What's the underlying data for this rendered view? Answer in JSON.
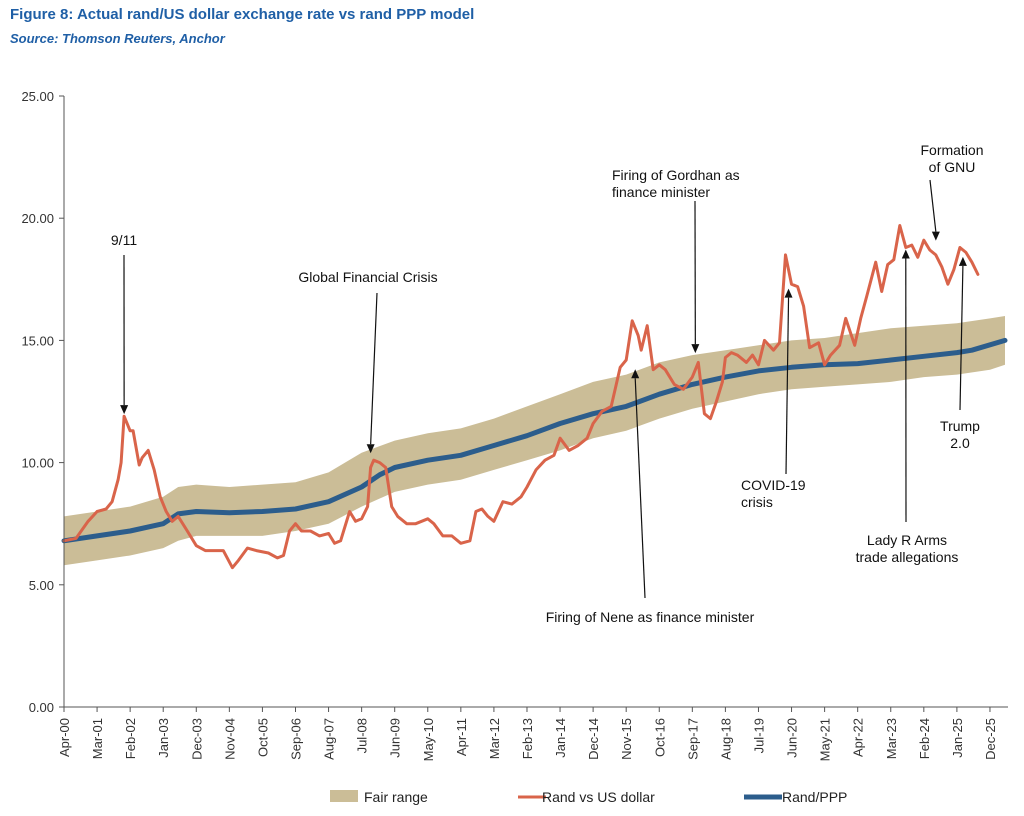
{
  "figure": {
    "title": "Figure 8: Actual rand/US dollar exchange rate vs rand PPP model",
    "source": "Source: Thomson Reuters, Anchor"
  },
  "chart_data": {
    "type": "line",
    "title": "Figure 8: Actual rand/US dollar exchange rate vs rand PPP model",
    "xlabel": "",
    "ylabel": "",
    "x_range": [
      "2000-04",
      "2026-06"
    ],
    "ylim": [
      0,
      25
    ],
    "yticks": [
      "0.00",
      "5.00",
      "10.00",
      "15.00",
      "20.00",
      "25.00"
    ],
    "xticks": [
      {
        "label": "Apr-00",
        "date": "2000-04"
      },
      {
        "label": "Mar-01",
        "date": "2001-03"
      },
      {
        "label": "Feb-02",
        "date": "2002-02"
      },
      {
        "label": "Jan-03",
        "date": "2003-01"
      },
      {
        "label": "Dec-03",
        "date": "2003-12"
      },
      {
        "label": "Nov-04",
        "date": "2004-11"
      },
      {
        "label": "Oct-05",
        "date": "2005-10"
      },
      {
        "label": "Sep-06",
        "date": "2006-09"
      },
      {
        "label": "Aug-07",
        "date": "2007-08"
      },
      {
        "label": "Jul-08",
        "date": "2008-07"
      },
      {
        "label": "Jun-09",
        "date": "2009-06"
      },
      {
        "label": "May-10",
        "date": "2010-05"
      },
      {
        "label": "Apr-11",
        "date": "2011-04"
      },
      {
        "label": "Mar-12",
        "date": "2012-03"
      },
      {
        "label": "Feb-13",
        "date": "2013-02"
      },
      {
        "label": "Jan-14",
        "date": "2014-01"
      },
      {
        "label": "Dec-14",
        "date": "2014-12"
      },
      {
        "label": "Nov-15",
        "date": "2015-11"
      },
      {
        "label": "Oct-16",
        "date": "2016-10"
      },
      {
        "label": "Sep-17",
        "date": "2017-09"
      },
      {
        "label": "Aug-18",
        "date": "2018-08"
      },
      {
        "label": "Jul-19",
        "date": "2019-07"
      },
      {
        "label": "Jun-20",
        "date": "2020-06"
      },
      {
        "label": "May-21",
        "date": "2021-05"
      },
      {
        "label": "Apr-22",
        "date": "2022-04"
      },
      {
        "label": "Mar-23",
        "date": "2023-03"
      },
      {
        "label": "Feb-24",
        "date": "2024-02"
      },
      {
        "label": "Jan-25",
        "date": "2025-01"
      },
      {
        "label": "Dec-25",
        "date": "2025-12"
      }
    ],
    "grid": false,
    "legend_position": "bottom",
    "series": [
      {
        "name": "Fair range",
        "kind": "band",
        "color": "#cbbd97",
        "points": [
          {
            "date": "2000-04",
            "low": 5.8,
            "high": 7.8
          },
          {
            "date": "2001-03",
            "low": 6.0,
            "high": 8.0
          },
          {
            "date": "2002-02",
            "low": 6.2,
            "high": 8.2
          },
          {
            "date": "2003-01",
            "low": 6.5,
            "high": 8.6
          },
          {
            "date": "2003-06",
            "low": 6.8,
            "high": 9.0
          },
          {
            "date": "2003-12",
            "low": 7.0,
            "high": 9.1
          },
          {
            "date": "2004-11",
            "low": 7.0,
            "high": 9.0
          },
          {
            "date": "2005-10",
            "low": 7.0,
            "high": 9.1
          },
          {
            "date": "2006-09",
            "low": 7.2,
            "high": 9.2
          },
          {
            "date": "2007-08",
            "low": 7.5,
            "high": 9.6
          },
          {
            "date": "2008-07",
            "low": 8.2,
            "high": 10.4
          },
          {
            "date": "2009-06",
            "low": 8.8,
            "high": 10.9
          },
          {
            "date": "2010-05",
            "low": 9.1,
            "high": 11.2
          },
          {
            "date": "2011-04",
            "low": 9.3,
            "high": 11.4
          },
          {
            "date": "2012-03",
            "low": 9.7,
            "high": 11.8
          },
          {
            "date": "2013-02",
            "low": 10.1,
            "high": 12.3
          },
          {
            "date": "2014-01",
            "low": 10.5,
            "high": 12.8
          },
          {
            "date": "2014-12",
            "low": 11.0,
            "high": 13.3
          },
          {
            "date": "2015-11",
            "low": 11.3,
            "high": 13.6
          },
          {
            "date": "2016-10",
            "low": 11.8,
            "high": 14.1
          },
          {
            "date": "2017-09",
            "low": 12.2,
            "high": 14.4
          },
          {
            "date": "2018-08",
            "low": 12.5,
            "high": 14.6
          },
          {
            "date": "2019-07",
            "low": 12.8,
            "high": 14.8
          },
          {
            "date": "2020-06",
            "low": 13.0,
            "high": 15.0
          },
          {
            "date": "2021-05",
            "low": 13.1,
            "high": 15.1
          },
          {
            "date": "2022-04",
            "low": 13.2,
            "high": 15.3
          },
          {
            "date": "2023-03",
            "low": 13.3,
            "high": 15.5
          },
          {
            "date": "2024-02",
            "low": 13.5,
            "high": 15.6
          },
          {
            "date": "2025-01",
            "low": 13.6,
            "high": 15.7
          },
          {
            "date": "2025-12",
            "low": 13.8,
            "high": 15.9
          },
          {
            "date": "2026-05",
            "low": 14.0,
            "high": 16.0
          }
        ]
      },
      {
        "name": "Rand vs US dollar",
        "kind": "line",
        "color": "#d9644a",
        "points": [
          [
            "2000-04",
            6.8
          ],
          [
            "2000-08",
            6.9
          ],
          [
            "2000-12",
            7.6
          ],
          [
            "2001-03",
            8.0
          ],
          [
            "2001-06",
            8.1
          ],
          [
            "2001-08",
            8.4
          ],
          [
            "2001-10",
            9.3
          ],
          [
            "2001-11",
            10.0
          ],
          [
            "2001-12",
            11.9
          ],
          [
            "2002-02",
            11.3
          ],
          [
            "2002-03",
            11.3
          ],
          [
            "2002-05",
            9.9
          ],
          [
            "2002-06",
            10.2
          ],
          [
            "2002-08",
            10.5
          ],
          [
            "2002-10",
            9.7
          ],
          [
            "2002-12",
            8.6
          ],
          [
            "2003-02",
            8.0
          ],
          [
            "2003-04",
            7.6
          ],
          [
            "2003-06",
            7.8
          ],
          [
            "2003-09",
            7.2
          ],
          [
            "2003-12",
            6.6
          ],
          [
            "2004-03",
            6.4
          ],
          [
            "2004-06",
            6.4
          ],
          [
            "2004-09",
            6.4
          ],
          [
            "2004-12",
            5.7
          ],
          [
            "2005-02",
            6.0
          ],
          [
            "2005-05",
            6.5
          ],
          [
            "2005-08",
            6.4
          ],
          [
            "2005-12",
            6.3
          ],
          [
            "2006-03",
            6.1
          ],
          [
            "2006-05",
            6.2
          ],
          [
            "2006-07",
            7.2
          ],
          [
            "2006-09",
            7.5
          ],
          [
            "2006-11",
            7.2
          ],
          [
            "2007-02",
            7.2
          ],
          [
            "2007-05",
            7.0
          ],
          [
            "2007-08",
            7.1
          ],
          [
            "2007-10",
            6.7
          ],
          [
            "2007-12",
            6.8
          ],
          [
            "2008-03",
            8.0
          ],
          [
            "2008-05",
            7.6
          ],
          [
            "2008-07",
            7.7
          ],
          [
            "2008-09",
            8.2
          ],
          [
            "2008-10",
            9.8
          ],
          [
            "2008-11",
            10.1
          ],
          [
            "2009-01",
            10.0
          ],
          [
            "2009-03",
            9.8
          ],
          [
            "2009-05",
            8.2
          ],
          [
            "2009-07",
            7.8
          ],
          [
            "2009-10",
            7.5
          ],
          [
            "2010-01",
            7.5
          ],
          [
            "2010-05",
            7.7
          ],
          [
            "2010-07",
            7.5
          ],
          [
            "2010-10",
            7.0
          ],
          [
            "2011-01",
            7.0
          ],
          [
            "2011-04",
            6.7
          ],
          [
            "2011-07",
            6.8
          ],
          [
            "2011-09",
            8.0
          ],
          [
            "2011-11",
            8.1
          ],
          [
            "2012-01",
            7.8
          ],
          [
            "2012-03",
            7.6
          ],
          [
            "2012-06",
            8.4
          ],
          [
            "2012-09",
            8.3
          ],
          [
            "2012-12",
            8.6
          ],
          [
            "2013-02",
            9.0
          ],
          [
            "2013-05",
            9.7
          ],
          [
            "2013-08",
            10.1
          ],
          [
            "2013-11",
            10.3
          ],
          [
            "2014-01",
            11.0
          ],
          [
            "2014-04",
            10.5
          ],
          [
            "2014-07",
            10.7
          ],
          [
            "2014-10",
            11.0
          ],
          [
            "2014-12",
            11.6
          ],
          [
            "2015-03",
            12.1
          ],
          [
            "2015-06",
            12.3
          ],
          [
            "2015-09",
            13.9
          ],
          [
            "2015-11",
            14.2
          ],
          [
            "2016-01",
            15.8
          ],
          [
            "2016-03",
            15.2
          ],
          [
            "2016-04",
            14.6
          ],
          [
            "2016-06",
            15.6
          ],
          [
            "2016-08",
            13.8
          ],
          [
            "2016-10",
            14.0
          ],
          [
            "2016-12",
            13.8
          ],
          [
            "2017-03",
            13.2
          ],
          [
            "2017-06",
            13.0
          ],
          [
            "2017-09",
            13.5
          ],
          [
            "2017-11",
            14.1
          ],
          [
            "2018-01",
            12.0
          ],
          [
            "2018-03",
            11.8
          ],
          [
            "2018-05",
            12.5
          ],
          [
            "2018-07",
            13.3
          ],
          [
            "2018-08",
            14.3
          ],
          [
            "2018-10",
            14.5
          ],
          [
            "2018-12",
            14.4
          ],
          [
            "2019-03",
            14.1
          ],
          [
            "2019-05",
            14.4
          ],
          [
            "2019-07",
            14.0
          ],
          [
            "2019-09",
            15.0
          ],
          [
            "2019-12",
            14.6
          ],
          [
            "2020-02",
            14.9
          ],
          [
            "2020-04",
            18.5
          ],
          [
            "2020-06",
            17.3
          ],
          [
            "2020-08",
            17.2
          ],
          [
            "2020-10",
            16.4
          ],
          [
            "2020-12",
            14.7
          ],
          [
            "2021-03",
            14.9
          ],
          [
            "2021-05",
            14.0
          ],
          [
            "2021-07",
            14.4
          ],
          [
            "2021-10",
            14.8
          ],
          [
            "2021-12",
            15.9
          ],
          [
            "2022-03",
            14.8
          ],
          [
            "2022-05",
            15.9
          ],
          [
            "2022-07",
            16.8
          ],
          [
            "2022-10",
            18.2
          ],
          [
            "2022-12",
            17.0
          ],
          [
            "2023-02",
            18.1
          ],
          [
            "2023-04",
            18.3
          ],
          [
            "2023-06",
            19.7
          ],
          [
            "2023-08",
            18.8
          ],
          [
            "2023-10",
            18.9
          ],
          [
            "2023-12",
            18.4
          ],
          [
            "2024-02",
            19.1
          ],
          [
            "2024-04",
            18.7
          ],
          [
            "2024-06",
            18.5
          ],
          [
            "2024-08",
            18.0
          ],
          [
            "2024-10",
            17.3
          ],
          [
            "2024-12",
            17.9
          ],
          [
            "2025-02",
            18.8
          ],
          [
            "2025-04",
            18.6
          ],
          [
            "2025-06",
            18.2
          ],
          [
            "2025-08",
            17.7
          ]
        ]
      },
      {
        "name": "Rand/PPP",
        "kind": "line",
        "color": "#2c5d8c",
        "points": [
          [
            "2000-04",
            6.8
          ],
          [
            "2001-03",
            7.0
          ],
          [
            "2002-02",
            7.2
          ],
          [
            "2003-01",
            7.5
          ],
          [
            "2003-06",
            7.9
          ],
          [
            "2003-12",
            8.0
          ],
          [
            "2004-11",
            7.95
          ],
          [
            "2005-10",
            8.0
          ],
          [
            "2006-09",
            8.1
          ],
          [
            "2007-08",
            8.4
          ],
          [
            "2008-07",
            9.0
          ],
          [
            "2009-01",
            9.5
          ],
          [
            "2009-06",
            9.8
          ],
          [
            "2010-05",
            10.1
          ],
          [
            "2011-04",
            10.3
          ],
          [
            "2012-03",
            10.7
          ],
          [
            "2013-02",
            11.1
          ],
          [
            "2014-01",
            11.6
          ],
          [
            "2014-12",
            12.0
          ],
          [
            "2015-11",
            12.3
          ],
          [
            "2016-10",
            12.8
          ],
          [
            "2017-09",
            13.2
          ],
          [
            "2018-08",
            13.5
          ],
          [
            "2019-07",
            13.75
          ],
          [
            "2020-06",
            13.9
          ],
          [
            "2021-05",
            14.0
          ],
          [
            "2022-04",
            14.05
          ],
          [
            "2023-03",
            14.2
          ],
          [
            "2024-02",
            14.35
          ],
          [
            "2025-01",
            14.5
          ],
          [
            "2025-06",
            14.6
          ],
          [
            "2026-05",
            15.0
          ]
        ]
      }
    ],
    "annotations": [
      {
        "lines": [
          "9/11"
        ],
        "date": "2001-12",
        "value": 11.9
      },
      {
        "lines": [
          "Global Financial Crisis"
        ],
        "date": "2008-10",
        "value": 10.3
      },
      {
        "lines": [
          "Firing of Nene as finance minister"
        ],
        "date": "2016-02",
        "value": 13.9
      },
      {
        "lines": [
          "Firing of Gordhan as",
          "finance minister"
        ],
        "date": "2017-10",
        "value": 14.4
      },
      {
        "lines": [
          "COVID-19",
          "crisis"
        ],
        "date": "2020-05",
        "value": 17.2
      },
      {
        "lines": [
          "Lady  R Arms",
          "trade allegations"
        ],
        "date": "2023-08",
        "value": 18.8
      },
      {
        "lines": [
          "Formation",
          "of GNU"
        ],
        "date": "2024-06",
        "value": 19.0
      },
      {
        "lines": [
          "Trump",
          "2.0"
        ],
        "date": "2025-03",
        "value": 18.5
      }
    ]
  }
}
